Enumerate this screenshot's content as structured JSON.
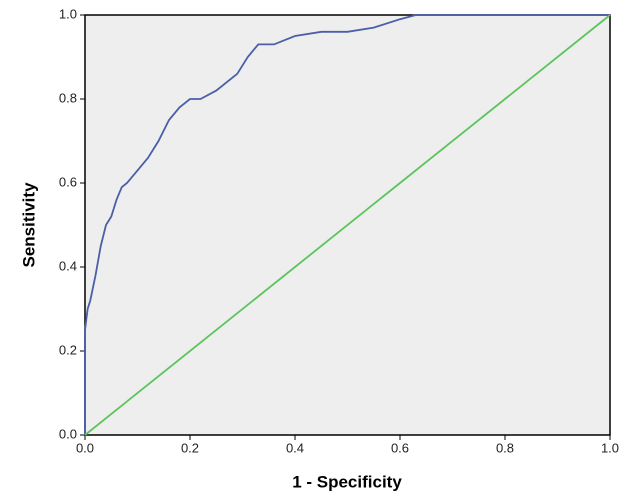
{
  "chart_data": {
    "type": "line",
    "x_label": "1 - Specificity",
    "y_label": "Sensitivity",
    "xlim": [
      0,
      1
    ],
    "ylim": [
      0,
      1
    ],
    "xticks": [
      {
        "value": 0,
        "label": "0.0"
      },
      0.2,
      0.4,
      0.6,
      0.8,
      {
        "value": 1,
        "label": "1.0"
      }
    ],
    "yticks": [
      {
        "value": 0,
        "label": "0.0"
      },
      0.2,
      0.4,
      0.6,
      0.8,
      {
        "value": 1,
        "label": "1.0"
      }
    ],
    "series": [
      {
        "color": "#4a5fa8",
        "x": [
          0,
          0,
          0.005,
          0.01,
          0.02,
          0.03,
          0.04,
          0.05,
          0.06,
          0.07,
          0.08,
          0.1,
          0.12,
          0.14,
          0.16,
          0.18,
          0.2,
          0.22,
          0.25,
          0.29,
          0.31,
          0.33,
          0.36,
          0.38,
          0.4,
          0.45,
          0.5,
          0.55,
          0.6,
          0.63,
          1
        ],
        "values": [
          0,
          0.25,
          0.3,
          0.32,
          0.38,
          0.45,
          0.5,
          0.52,
          0.56,
          0.59,
          0.6,
          0.63,
          0.66,
          0.7,
          0.75,
          0.78,
          0.8,
          0.8,
          0.82,
          0.86,
          0.9,
          0.93,
          0.93,
          0.94,
          0.95,
          0.96,
          0.96,
          0.97,
          0.99,
          1,
          1
        ]
      },
      {
        "color": "#5cc45c",
        "x": [
          0,
          1
        ],
        "values": [
          0,
          1
        ]
      }
    ]
  }
}
